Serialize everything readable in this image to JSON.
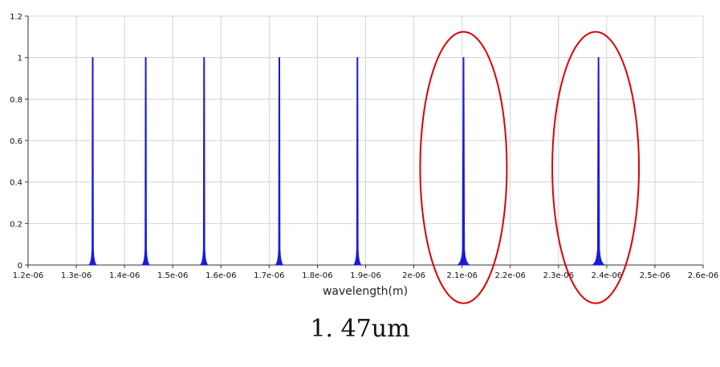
{
  "caption": "1. 47um",
  "chart_data": {
    "type": "line",
    "title": "",
    "xlabel": "wavelength(m)",
    "ylabel": "",
    "xlim": [
      1.2e-06,
      2.6e-06
    ],
    "ylim": [
      0,
      1.2
    ],
    "grid": true,
    "x_ticks": [
      1.2e-06,
      1.3e-06,
      1.4e-06,
      1.5e-06,
      1.6e-06,
      1.7e-06,
      1.8e-06,
      1.9e-06,
      2e-06,
      2.1e-06,
      2.2e-06,
      2.3e-06,
      2.4e-06,
      2.5e-06,
      2.6e-06
    ],
    "x_tick_labels": [
      "1.2e-06",
      "1.3e-06",
      "1.4e-06",
      "1.5e-06",
      "1.6e-06",
      "1.7e-06",
      "1.8e-06",
      "1.9e-06",
      "2e-06",
      "2.1e-06",
      "2.2e-06",
      "2.3e-06",
      "2.4e-06",
      "2.5e-06",
      "2.6e-06"
    ],
    "y_ticks": [
      0,
      0.2,
      0.4,
      0.6,
      0.8,
      1,
      1.2
    ],
    "y_tick_labels": [
      "0",
      "0.2",
      "0.4",
      "0.6",
      "0.8",
      "1",
      "1.2"
    ],
    "series": [
      {
        "color": "#1a1adc",
        "peaks": [
          {
            "x": 1.334e-06,
            "y": 1
          },
          {
            "x": 1.444e-06,
            "y": 1
          },
          {
            "x": 1.565e-06,
            "y": 1
          },
          {
            "x": 1.721e-06,
            "y": 1
          },
          {
            "x": 1.883e-06,
            "y": 1
          },
          {
            "x": 2.103e-06,
            "y": 1
          },
          {
            "x": 2.383e-06,
            "y": 1
          }
        ]
      }
    ],
    "annotations": [
      {
        "type": "ellipse",
        "color": "#dd0000",
        "center_x": 2.103e-06,
        "center_y": 0.47
      },
      {
        "type": "ellipse",
        "color": "#dd0000",
        "center_x": 2.377e-06,
        "center_y": 0.47
      }
    ]
  }
}
